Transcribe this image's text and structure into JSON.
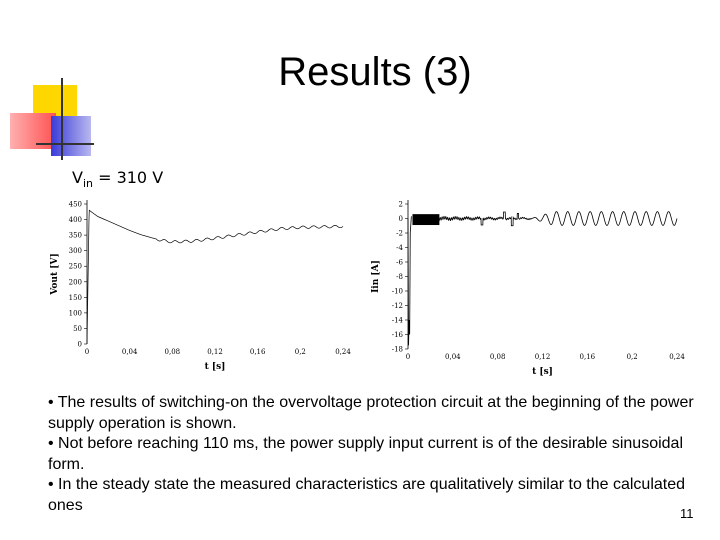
{
  "slide": {
    "title": "Results (3)",
    "vin_label": "V",
    "vin_sub": "in",
    "vin_value": " = 310 V",
    "bullets": [
      "• The results of switching-on the overvoltage protection circuit at the beginning of the power supply operation is shown.",
      "• Not before reaching 110 ms, the power supply input current is of the desirable sinusoidal form.",
      "• In the steady state the measured characteristics are qualitatively similar to the calculated ones"
    ],
    "page_number": "11"
  },
  "colors": {
    "accent_yellow": "#ffd700",
    "accent_red": "#ff5050",
    "accent_blue": "#3a3ad8"
  },
  "chart_data": [
    {
      "type": "line",
      "ylabel": "Vout [V]",
      "xlabel": "t [s]",
      "xlim": [
        0,
        0.24
      ],
      "ylim": [
        0,
        450
      ],
      "x_ticks": [
        "0",
        "0,04",
        "0,08",
        "0,12",
        "0,16",
        "0,2",
        "0,24"
      ],
      "y_ticks": [
        "0",
        "50",
        "100",
        "150",
        "200",
        "250",
        "300",
        "350",
        "400",
        "450"
      ],
      "description_points": {
        "x": [
          0,
          0.002,
          0.01,
          0.02,
          0.03,
          0.04,
          0.05,
          0.06,
          0.07,
          0.08,
          0.1,
          0.12,
          0.14,
          0.16,
          0.18,
          0.2,
          0.24
        ],
        "y": [
          0,
          430,
          410,
          395,
          380,
          365,
          352,
          342,
          333,
          328,
          331,
          340,
          350,
          360,
          370,
          375,
          378
        ]
      }
    },
    {
      "type": "line",
      "ylabel": "Iin [A]",
      "xlabel": "t [s]",
      "xlim": [
        0,
        0.24
      ],
      "ylim": [
        -18,
        2
      ],
      "x_ticks": [
        "0",
        "0,04",
        "0,08",
        "0,12",
        "0,16",
        "0,2",
        "0,24"
      ],
      "y_ticks": [
        "2",
        "0",
        "-2",
        "-4",
        "-6",
        "-8",
        "-10",
        "-12",
        "-14",
        "-16",
        "-18"
      ]
    }
  ]
}
